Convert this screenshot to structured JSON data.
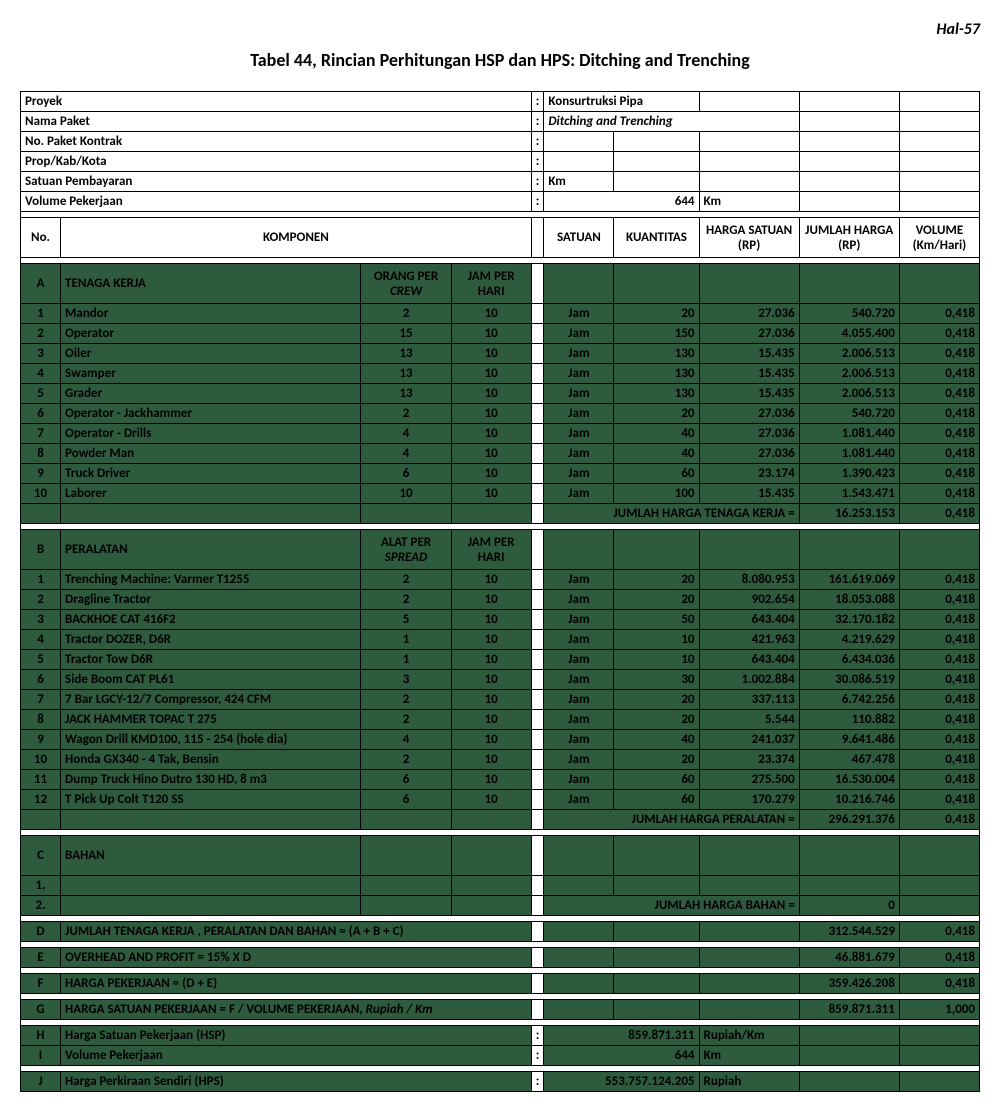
{
  "page_number": "Hal-57",
  "title": "Tabel 44, Rincian Perhitungan HSP dan HPS: Ditching and Trenching",
  "header": {
    "proyek_label": "Proyek",
    "proyek_val": "Konsurtruksi Pipa",
    "nama_paket_label": "Nama Paket",
    "nama_paket_val": "Ditching and Trenching",
    "no_paket_label": "No. Paket Kontrak",
    "prop_label": "Prop/Kab/Kota",
    "satuan_label": "Satuan Pembayaran",
    "satuan_val": "Km",
    "volume_label": "Volume Pekerjaan",
    "volume_val": "644",
    "volume_unit": "Km"
  },
  "cols": {
    "no": "No.",
    "komponen": "KOMPONEN",
    "satuan": "SATUAN",
    "kuantitas": "KUANTITAS",
    "harga_satuan": "HARGA SATUAN (RP)",
    "jumlah_harga": "JUMLAH HARGA (RP)",
    "volume": "VOLUME (Km/Hari)"
  },
  "secA": {
    "code": "A",
    "name": "TENAGA KERJA",
    "sub1": "ORANG PER",
    "sub1b": "CREW",
    "sub2": "JAM PER HARI",
    "rows": [
      {
        "n": "1",
        "name": "Mandor",
        "c1": "2",
        "c2": "10",
        "sat": "Jam",
        "q": "20",
        "hs": "27.036",
        "jh": "540.720",
        "v": "0,418"
      },
      {
        "n": "2",
        "name": "Operator",
        "c1": "15",
        "c2": "10",
        "sat": "Jam",
        "q": "150",
        "hs": "27.036",
        "jh": "4.055.400",
        "v": "0,418"
      },
      {
        "n": "3",
        "name": "Oiler",
        "c1": "13",
        "c2": "10",
        "sat": "Jam",
        "q": "130",
        "hs": "15.435",
        "jh": "2.006.513",
        "v": "0,418"
      },
      {
        "n": "4",
        "name": "Swamper",
        "c1": "13",
        "c2": "10",
        "sat": "Jam",
        "q": "130",
        "hs": "15.435",
        "jh": "2.006.513",
        "v": "0,418"
      },
      {
        "n": "5",
        "name": "Grader",
        "c1": "13",
        "c2": "10",
        "sat": "Jam",
        "q": "130",
        "hs": "15.435",
        "jh": "2.006.513",
        "v": "0,418"
      },
      {
        "n": "6",
        "name": "Operator - Jackhammer",
        "c1": "2",
        "c2": "10",
        "sat": "Jam",
        "q": "20",
        "hs": "27.036",
        "jh": "540.720",
        "v": "0,418"
      },
      {
        "n": "7",
        "name": "Operator - Drills",
        "c1": "4",
        "c2": "10",
        "sat": "Jam",
        "q": "40",
        "hs": "27.036",
        "jh": "1.081.440",
        "v": "0,418"
      },
      {
        "n": "8",
        "name": "Powder Man",
        "c1": "4",
        "c2": "10",
        "sat": "Jam",
        "q": "40",
        "hs": "27.036",
        "jh": "1.081.440",
        "v": "0,418"
      },
      {
        "n": "9",
        "name": "Truck Driver",
        "c1": "6",
        "c2": "10",
        "sat": "Jam",
        "q": "60",
        "hs": "23.174",
        "jh": "1.390.423",
        "v": "0,418"
      },
      {
        "n": "10",
        "name": "Laborer",
        "c1": "10",
        "c2": "10",
        "sat": "Jam",
        "q": "100",
        "hs": "15.435",
        "jh": "1.543.471",
        "v": "0,418"
      }
    ],
    "subtotal_label": "JUMLAH HARGA TENAGA KERJA =",
    "subtotal_jh": "16.253.153",
    "subtotal_v": "0,418"
  },
  "secB": {
    "code": "B",
    "name": "PERALATAN",
    "sub1": "ALAT PER",
    "sub1b": "SPREAD",
    "sub2": "JAM PER HARI",
    "rows": [
      {
        "n": "1",
        "name": "Trenching Machine: Varmer T1255",
        "c1": "2",
        "c2": "10",
        "sat": "Jam",
        "q": "20",
        "hs": "8.080.953",
        "jh": "161.619.069",
        "v": "0,418"
      },
      {
        "n": "2",
        "name": "Dragline Tractor",
        "c1": "2",
        "c2": "10",
        "sat": "Jam",
        "q": "20",
        "hs": "902.654",
        "jh": "18.053.088",
        "v": "0,418"
      },
      {
        "n": "3",
        "name": "BACKHOE CAT 416F2",
        "c1": "5",
        "c2": "10",
        "sat": "Jam",
        "q": "50",
        "hs": "643.404",
        "jh": "32.170.182",
        "v": "0,418"
      },
      {
        "n": "4",
        "name": "Tractor DOZER, D6R",
        "c1": "1",
        "c2": "10",
        "sat": "Jam",
        "q": "10",
        "hs": "421.963",
        "jh": "4.219.629",
        "v": "0,418"
      },
      {
        "n": "5",
        "name": "Tractor Tow D6R",
        "c1": "1",
        "c2": "10",
        "sat": "Jam",
        "q": "10",
        "hs": "643.404",
        "jh": "6.434.036",
        "v": "0,418"
      },
      {
        "n": "6",
        "name": "Side Boom CAT PL61",
        "c1": "3",
        "c2": "10",
        "sat": "Jam",
        "q": "30",
        "hs": "1.002.884",
        "jh": "30.086.519",
        "v": "0,418"
      },
      {
        "n": "7",
        "name": "7 Bar LGCY-12/7 Compressor, 424 CFM",
        "c1": "2",
        "c2": "10",
        "sat": "Jam",
        "q": "20",
        "hs": "337.113",
        "jh": "6.742.256",
        "v": "0,418"
      },
      {
        "n": "8",
        "name": "JACK HAMMER TOPAC T 275",
        "c1": "2",
        "c2": "10",
        "sat": "Jam",
        "q": "20",
        "hs": "5.544",
        "jh": "110.882",
        "v": "0,418"
      },
      {
        "n": "9",
        "name": "Wagon Drill KMD100, 115 - 254 (hole dia)",
        "c1": "4",
        "c2": "10",
        "sat": "Jam",
        "q": "40",
        "hs": "241.037",
        "jh": "9.641.486",
        "v": "0,418"
      },
      {
        "n": "10",
        "name": "Honda GX340 - 4 Tak,  Bensin",
        "c1": "2",
        "c2": "10",
        "sat": "Jam",
        "q": "20",
        "hs": "23.374",
        "jh": "467.478",
        "v": "0,418"
      },
      {
        "n": "11",
        "name": "Dump Truck Hino Dutro 130 HD, 8 m3",
        "c1": "6",
        "c2": "10",
        "sat": "Jam",
        "q": "60",
        "hs": "275.500",
        "jh": "16.530.004",
        "v": "0,418"
      },
      {
        "n": "12",
        "name": "T Pick Up Colt T120 SS",
        "c1": "6",
        "c2": "10",
        "sat": "Jam",
        "q": "60",
        "hs": "170.279",
        "jh": "10.216.746",
        "v": "0,418"
      }
    ],
    "subtotal_label": "JUMLAH HARGA PERALATAN =",
    "subtotal_jh": "296.291.376",
    "subtotal_v": "0,418"
  },
  "secC": {
    "code": "C",
    "name": "BAHAN",
    "r1": "1.",
    "r2": "2.",
    "subtotal_label": "JUMLAH HARGA BAHAN =",
    "subtotal_jh": "0"
  },
  "totals": {
    "D_code": "D",
    "D_label": "JUMLAH TENAGA KERJA , PERALATAN DAN BAHAN = (A + B + C)",
    "D_jh": "312.544.529",
    "D_v": "0,418",
    "E_code": "E",
    "E_label": "OVERHEAD AND PROFIT = 15% X D",
    "E_jh": "46.881.679",
    "E_v": "0,418",
    "F_code": "F",
    "F_label": "HARGA PEKERJAAN = (D + E)",
    "F_jh": "359.426.208",
    "F_v": "0,418",
    "G_code": "G",
    "G_label": "HARGA SATUAN PEKERJAAN = F / VOLUME PEKERJAAN, ",
    "G_label2": "Rupiah / Km",
    "G_jh": "859.871.311",
    "G_v": "1,000"
  },
  "footer": {
    "H_code": "H",
    "H_label": "Harga Satuan Pekerjaan (HSP)",
    "H_val": "859.871.311",
    "H_unit": "Rupiah/Km",
    "I_code": "I",
    "I_label": "Volume Pekerjaan",
    "I_val": "644",
    "I_unit": "Km",
    "J_code": "J",
    "J_label": "Harga Perkiraan Sendiri (HPS)",
    "J_val": "553.757.124.205",
    "J_unit": "Rupiah"
  }
}
